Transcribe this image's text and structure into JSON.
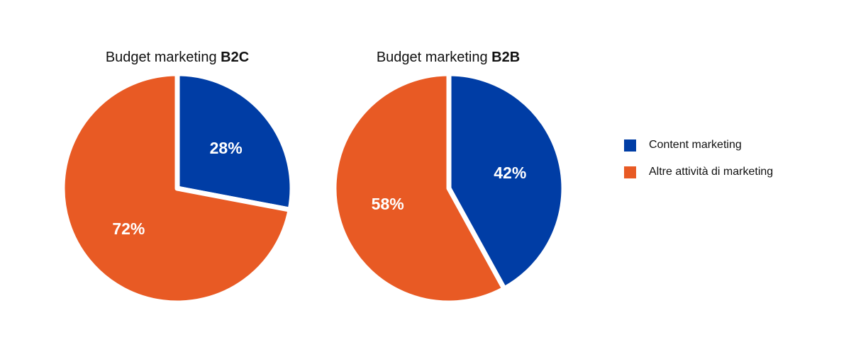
{
  "chart_data": [
    {
      "type": "pie",
      "title_prefix": "Budget marketing",
      "title_bold": "B2C",
      "slices": [
        {
          "name": "Content marketing",
          "value": 28,
          "label": "28%"
        },
        {
          "name": "Altre attività di marketing",
          "value": 72,
          "label": "72%"
        }
      ]
    },
    {
      "type": "pie",
      "title_prefix": "Budget marketing",
      "title_bold": "B2B",
      "slices": [
        {
          "name": "Content marketing",
          "value": 42,
          "label": "42%"
        },
        {
          "name": "Altre attività di marketing",
          "value": 58,
          "label": "58%"
        }
      ]
    }
  ],
  "legend": {
    "placement": "right",
    "items": [
      {
        "label": "Content marketing",
        "color": "#003DA5"
      },
      {
        "label": "Altre attività di marketing",
        "color": "#E85A24"
      }
    ]
  },
  "colors": {
    "content": "#003DA5",
    "other": "#E85A24"
  }
}
